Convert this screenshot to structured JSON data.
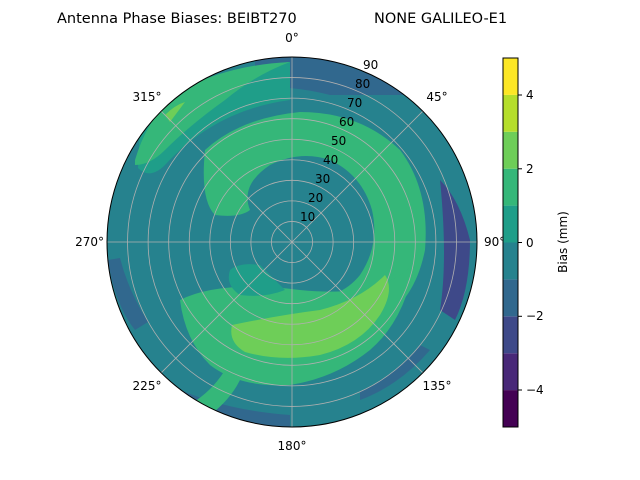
{
  "chart_data": {
    "type": "polar-contour",
    "title": "Antenna Phase Biases: BEIBT270",
    "subtitle": "NONE GALILEO-E1",
    "angular_ticks": [
      "0°",
      "45°",
      "90°",
      "135°",
      "180°",
      "225°",
      "270°",
      "315°"
    ],
    "radial_ticks": [
      "10",
      "20",
      "30",
      "40",
      "50",
      "60",
      "70",
      "80",
      "90"
    ],
    "radial_range": [
      0,
      90
    ],
    "grid": true,
    "colorbar": {
      "label": "Bias (mm)",
      "range": [
        -5,
        5
      ],
      "levels": [
        -5,
        -4,
        -3,
        -2,
        -1,
        0,
        1,
        2,
        3,
        4,
        5
      ],
      "ticks": [
        "−4",
        "−2",
        "0",
        "2",
        "4"
      ],
      "colors": [
        "#440154",
        "#482878",
        "#3e4989",
        "#31688e",
        "#26828e",
        "#1f9e89",
        "#35b779",
        "#6ece58",
        "#b5de2b",
        "#fde725"
      ]
    },
    "bias_field_samples_mm": [
      {
        "azimuth_deg": 0,
        "zenith_deg": 0,
        "bias": 0.5
      },
      {
        "azimuth_deg": 45,
        "zenith_deg": 40,
        "bias": 1.5
      },
      {
        "azimuth_deg": 90,
        "zenith_deg": 50,
        "bias": 1.5
      },
      {
        "azimuth_deg": 150,
        "zenith_deg": 60,
        "bias": 2.5
      },
      {
        "azimuth_deg": 200,
        "zenith_deg": 70,
        "bias": 2.5
      },
      {
        "azimuth_deg": 270,
        "zenith_deg": 30,
        "bias": -0.5
      },
      {
        "azimuth_deg": 315,
        "zenith_deg": 85,
        "bias": 1.5
      },
      {
        "azimuth_deg": 95,
        "zenith_deg": 85,
        "bias": -2.5
      },
      {
        "azimuth_deg": 240,
        "zenith_deg": 90,
        "bias": -0.5
      }
    ]
  }
}
